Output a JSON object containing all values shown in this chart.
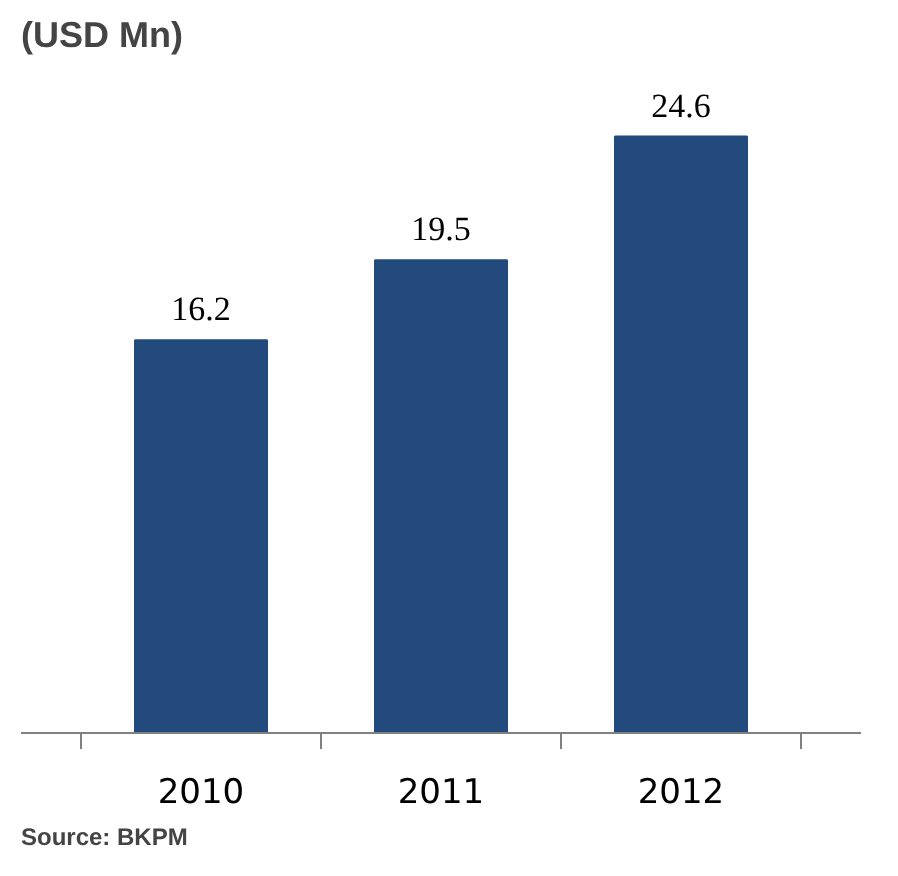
{
  "chart_data": {
    "type": "bar",
    "title": "(USD Mn)",
    "categories": [
      "2010",
      "2011",
      "2012"
    ],
    "values": [
      16.2,
      19.5,
      24.6
    ],
    "color": "#234a7c",
    "data_labels": true,
    "grid": false,
    "annotations": [
      "Source: BKPM"
    ]
  }
}
